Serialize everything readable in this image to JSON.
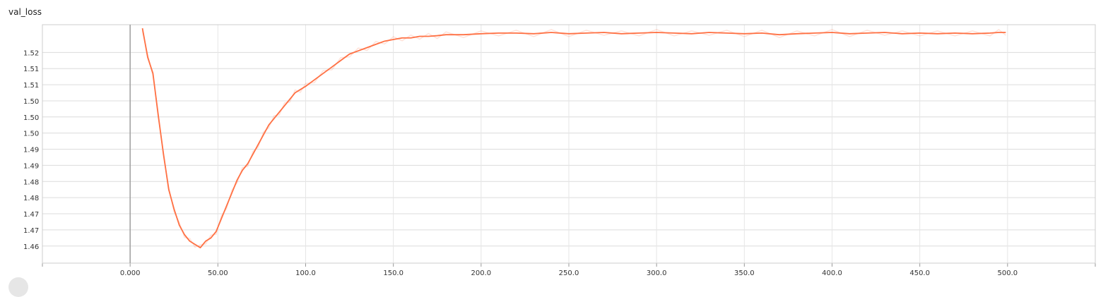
{
  "chart_data": {
    "type": "line",
    "title": "val_loss",
    "xlabel": "",
    "ylabel": "",
    "xlim": [
      -50,
      550
    ],
    "ylim": [
      1.4547,
      1.5286
    ],
    "x_ticks": [
      {
        "value": 0,
        "label": "0.000"
      },
      {
        "value": 50,
        "label": "50.00"
      },
      {
        "value": 100,
        "label": "100.0"
      },
      {
        "value": 150,
        "label": "150.0"
      },
      {
        "value": 200,
        "label": "200.0"
      },
      {
        "value": 250,
        "label": "250.0"
      },
      {
        "value": 300,
        "label": "300.0"
      },
      {
        "value": 350,
        "label": "350.0"
      },
      {
        "value": 400,
        "label": "400.0"
      },
      {
        "value": 450,
        "label": "450.0"
      },
      {
        "value": 500,
        "label": "500.0"
      }
    ],
    "y_ticks": [
      {
        "value": 1.46,
        "label": "1.46"
      },
      {
        "value": 1.465,
        "label": "1.47"
      },
      {
        "value": 1.47,
        "label": "1.47"
      },
      {
        "value": 1.475,
        "label": "1.48"
      },
      {
        "value": 1.48,
        "label": "1.48"
      },
      {
        "value": 1.485,
        "label": "1.49"
      },
      {
        "value": 1.49,
        "label": "1.49"
      },
      {
        "value": 1.495,
        "label": "1.50"
      },
      {
        "value": 1.5,
        "label": "1.50"
      },
      {
        "value": 1.505,
        "label": "1.50"
      },
      {
        "value": 1.51,
        "label": "1.51"
      },
      {
        "value": 1.515,
        "label": "1.51"
      },
      {
        "value": 1.52,
        "label": "1.52"
      }
    ],
    "grid": true,
    "series": [
      {
        "color": "#ff7043",
        "x": [
          7,
          10,
          13,
          16,
          19,
          22,
          25,
          28,
          31,
          34,
          37,
          40,
          43,
          46,
          49,
          52,
          55,
          58,
          61,
          64,
          67,
          70,
          73,
          76,
          79,
          82,
          85,
          88,
          91,
          94,
          97,
          100,
          105,
          110,
          115,
          120,
          125,
          130,
          135,
          140,
          145,
          150,
          155,
          160,
          165,
          170,
          175,
          180,
          190,
          200,
          210,
          220,
          230,
          240,
          250,
          260,
          270,
          280,
          290,
          300,
          310,
          320,
          330,
          340,
          350,
          360,
          370,
          380,
          390,
          400,
          410,
          420,
          430,
          440,
          450,
          460,
          470,
          480,
          490,
          495,
          499
        ],
        "y": [
          1.5275,
          1.5185,
          1.5135,
          1.5005,
          1.4885,
          1.4775,
          1.4715,
          1.4665,
          1.4635,
          1.4615,
          1.4605,
          1.4595,
          1.4615,
          1.4625,
          1.4645,
          1.4685,
          1.4725,
          1.4765,
          1.4805,
          1.4835,
          1.4855,
          1.4885,
          1.4915,
          1.4945,
          1.4975,
          1.4995,
          1.5015,
          1.5035,
          1.5055,
          1.5075,
          1.5085,
          1.5095,
          1.5115,
          1.5135,
          1.5155,
          1.5175,
          1.5195,
          1.5205,
          1.5215,
          1.5225,
          1.5235,
          1.524,
          1.5245,
          1.5245,
          1.525,
          1.525,
          1.5252,
          1.5255,
          1.5255,
          1.5258,
          1.526,
          1.526,
          1.5258,
          1.5262,
          1.5258,
          1.526,
          1.5262,
          1.5258,
          1.526,
          1.5262,
          1.526,
          1.5258,
          1.5262,
          1.526,
          1.5258,
          1.526,
          1.5255,
          1.5258,
          1.526,
          1.5262,
          1.5258,
          1.526,
          1.5262,
          1.5258,
          1.526,
          1.5258,
          1.526,
          1.5258,
          1.526,
          1.5262,
          1.5262
        ]
      }
    ],
    "zero_line_x": 0
  }
}
